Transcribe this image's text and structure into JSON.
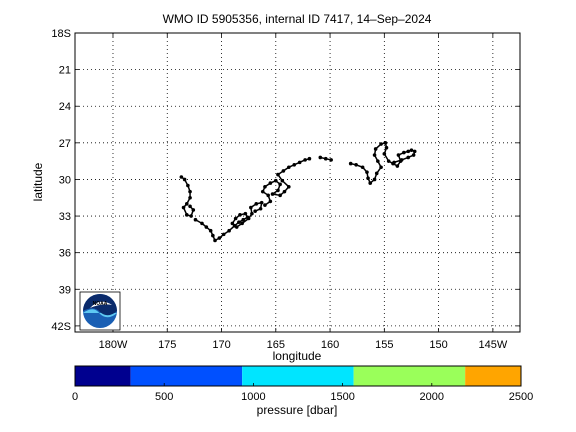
{
  "chart_data": {
    "type": "scatter",
    "title": "WMO ID 5905356, internal ID 7417, 14–Sep–2024",
    "xlabel": "longitude",
    "ylabel": "latitude",
    "xlim": [
      -183.5,
      -142.5
    ],
    "ylim": [
      -42.5,
      -18
    ],
    "x_ticks": [
      {
        "value": -180,
        "label": "180W"
      },
      {
        "value": -175,
        "label": "175"
      },
      {
        "value": -170,
        "label": "170"
      },
      {
        "value": -165,
        "label": "165"
      },
      {
        "value": -160,
        "label": "160"
      },
      {
        "value": -155,
        "label": "155"
      },
      {
        "value": -150,
        "label": "150"
      },
      {
        "value": -145,
        "label": "145W"
      }
    ],
    "y_ticks": [
      {
        "value": -18,
        "label": "18S"
      },
      {
        "value": -21,
        "label": "21"
      },
      {
        "value": -24,
        "label": "24"
      },
      {
        "value": -27,
        "label": "27"
      },
      {
        "value": -30,
        "label": "30"
      },
      {
        "value": -33,
        "label": "33"
      },
      {
        "value": -36,
        "label": "36"
      },
      {
        "value": -39,
        "label": "39"
      },
      {
        "value": -42,
        "label": "42S"
      }
    ],
    "grid": true,
    "series": [
      {
        "points": [
          [
            -173.7,
            -29.8
          ],
          [
            -173.4,
            -30.0
          ],
          [
            -173.1,
            -30.5
          ],
          [
            -172.9,
            -31.0
          ],
          [
            -172.9,
            -31.5
          ],
          [
            -173.2,
            -32.0
          ],
          [
            -173.5,
            -32.3
          ],
          [
            -173.2,
            -32.9
          ],
          [
            -172.8,
            -33.0
          ],
          [
            -172.6,
            -32.5
          ],
          [
            -172.9,
            -32.2
          ],
          [
            -172.4,
            -33.3
          ],
          [
            -171.8,
            -33.6
          ],
          [
            -171.4,
            -33.9
          ],
          [
            -171.0,
            -34.2
          ],
          [
            -170.8,
            -34.6
          ],
          [
            -170.6,
            -35.0
          ],
          [
            -170.2,
            -34.8
          ],
          [
            -169.8,
            -34.5
          ],
          [
            -169.3,
            -34.2
          ],
          [
            -168.8,
            -33.8
          ],
          [
            -168.4,
            -33.5
          ],
          [
            -168.0,
            -33.3
          ],
          [
            -167.6,
            -33.1
          ],
          [
            -167.8,
            -32.8
          ],
          [
            -168.3,
            -32.9
          ],
          [
            -168.7,
            -33.2
          ],
          [
            -169.0,
            -33.6
          ],
          [
            -168.6,
            -33.9
          ],
          [
            -168.1,
            -33.6
          ],
          [
            -167.5,
            -33.2
          ],
          [
            -167.2,
            -32.8
          ],
          [
            -167.3,
            -32.3
          ],
          [
            -166.8,
            -32.0
          ],
          [
            -166.3,
            -31.9
          ],
          [
            -166.4,
            -32.4
          ],
          [
            -166.9,
            -32.6
          ],
          [
            -166.0,
            -32.1
          ],
          [
            -165.5,
            -31.8
          ],
          [
            -165.7,
            -31.3
          ],
          [
            -166.2,
            -31.0
          ],
          [
            -166.0,
            -30.6
          ],
          [
            -165.5,
            -30.3
          ],
          [
            -165.0,
            -30.1
          ],
          [
            -164.6,
            -30.4
          ],
          [
            -164.8,
            -30.9
          ],
          [
            -165.3,
            -31.2
          ],
          [
            -164.6,
            -31.3
          ],
          [
            -164.2,
            -31.0
          ],
          [
            -163.8,
            -30.6
          ],
          [
            -164.4,
            -30.1
          ],
          [
            -164.8,
            -29.6
          ],
          [
            -164.3,
            -29.3
          ],
          [
            -163.8,
            -29.0
          ],
          [
            -163.3,
            -28.8
          ],
          [
            -162.8,
            -28.6
          ],
          [
            -162.3,
            -28.4
          ],
          [
            -161.9,
            -28.3
          ],
          [
            -160.9,
            -28.2
          ],
          [
            -160.4,
            -28.3
          ],
          [
            -159.9,
            -28.4
          ],
          [
            -158.1,
            -28.7
          ],
          [
            -157.6,
            -28.8
          ],
          [
            -157.0,
            -29.0
          ],
          [
            -156.6,
            -29.4
          ],
          [
            -156.5,
            -29.9
          ],
          [
            -156.3,
            -30.3
          ],
          [
            -155.9,
            -30.0
          ],
          [
            -155.7,
            -29.5
          ],
          [
            -155.3,
            -29.0
          ],
          [
            -155.6,
            -28.5
          ],
          [
            -155.9,
            -28.0
          ],
          [
            -155.8,
            -27.5
          ],
          [
            -155.3,
            -27.1
          ],
          [
            -154.9,
            -27.0
          ],
          [
            -154.8,
            -27.4
          ],
          [
            -155.0,
            -27.9
          ],
          [
            -154.6,
            -28.5
          ],
          [
            -154.2,
            -28.7
          ],
          [
            -153.8,
            -28.9
          ],
          [
            -153.5,
            -28.5
          ],
          [
            -153.7,
            -28.0
          ],
          [
            -153.2,
            -27.8
          ],
          [
            -152.8,
            -27.7
          ],
          [
            -152.5,
            -27.6
          ],
          [
            -152.2,
            -27.7
          ],
          [
            -152.3,
            -28.0
          ],
          [
            -152.8,
            -28.2
          ],
          [
            -153.4,
            -28.4
          ],
          [
            -154.1,
            -28.6
          ]
        ]
      }
    ],
    "colorbar": {
      "label": "pressure [dbar]",
      "range": [
        0,
        2500
      ],
      "ticks": [
        "0",
        "500",
        "1000",
        "1500",
        "2000",
        "2500"
      ],
      "segments": [
        {
          "from": 0,
          "to": 312,
          "color": "#00008f"
        },
        {
          "from": 312,
          "to": 937,
          "color": "#0050ff"
        },
        {
          "from": 937,
          "to": 1562,
          "color": "#00e5ff"
        },
        {
          "from": 1562,
          "to": 2187,
          "color": "#9aff5a"
        },
        {
          "from": 2187,
          "to": 2500,
          "color": "#ffa500"
        }
      ]
    },
    "logo": {
      "text": "NOAA"
    }
  }
}
